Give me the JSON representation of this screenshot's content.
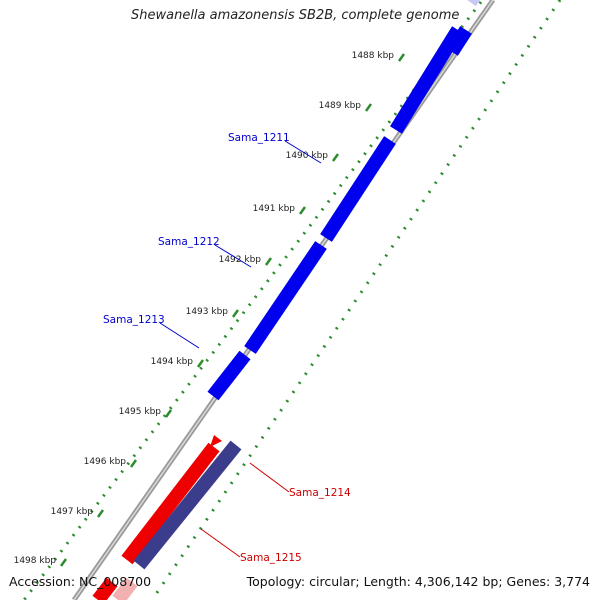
{
  "title": "Shewanella amazonensis SB2B, complete genome",
  "footer": {
    "accession": "Accession: NC_008700",
    "topology": "Topology: circular; Length: 4,306,142 bp; Genes: 3,774"
  },
  "colors": {
    "forward_gene": "#0000ee",
    "reverse_gene": "#ee0000",
    "reverse_gene_alt": "#3c3c8c",
    "tick": "#2e8b2e",
    "backbone": "#999999",
    "forward_label": "#0000cc",
    "reverse_label": "#cc0000"
  },
  "ticks": [
    {
      "label": "1488 kbp"
    },
    {
      "label": "1489 kbp"
    },
    {
      "label": "1490 kbp"
    },
    {
      "label": "1491 kbp"
    },
    {
      "label": "1492 kbp"
    },
    {
      "label": "1493 kbp"
    },
    {
      "label": "1494 kbp"
    },
    {
      "label": "1495 kbp"
    },
    {
      "label": "1496 kbp"
    },
    {
      "label": "1497 kbp"
    },
    {
      "label": "1498 kbp"
    }
  ],
  "genes": [
    {
      "label": "Sama_1211",
      "strand": "forward"
    },
    {
      "label": "Sama_1212",
      "strand": "forward"
    },
    {
      "label": "Sama_1213",
      "strand": "forward"
    },
    {
      "label": "Sama_1214",
      "strand": "reverse"
    },
    {
      "label": "Sama_1215",
      "strand": "reverse"
    }
  ]
}
